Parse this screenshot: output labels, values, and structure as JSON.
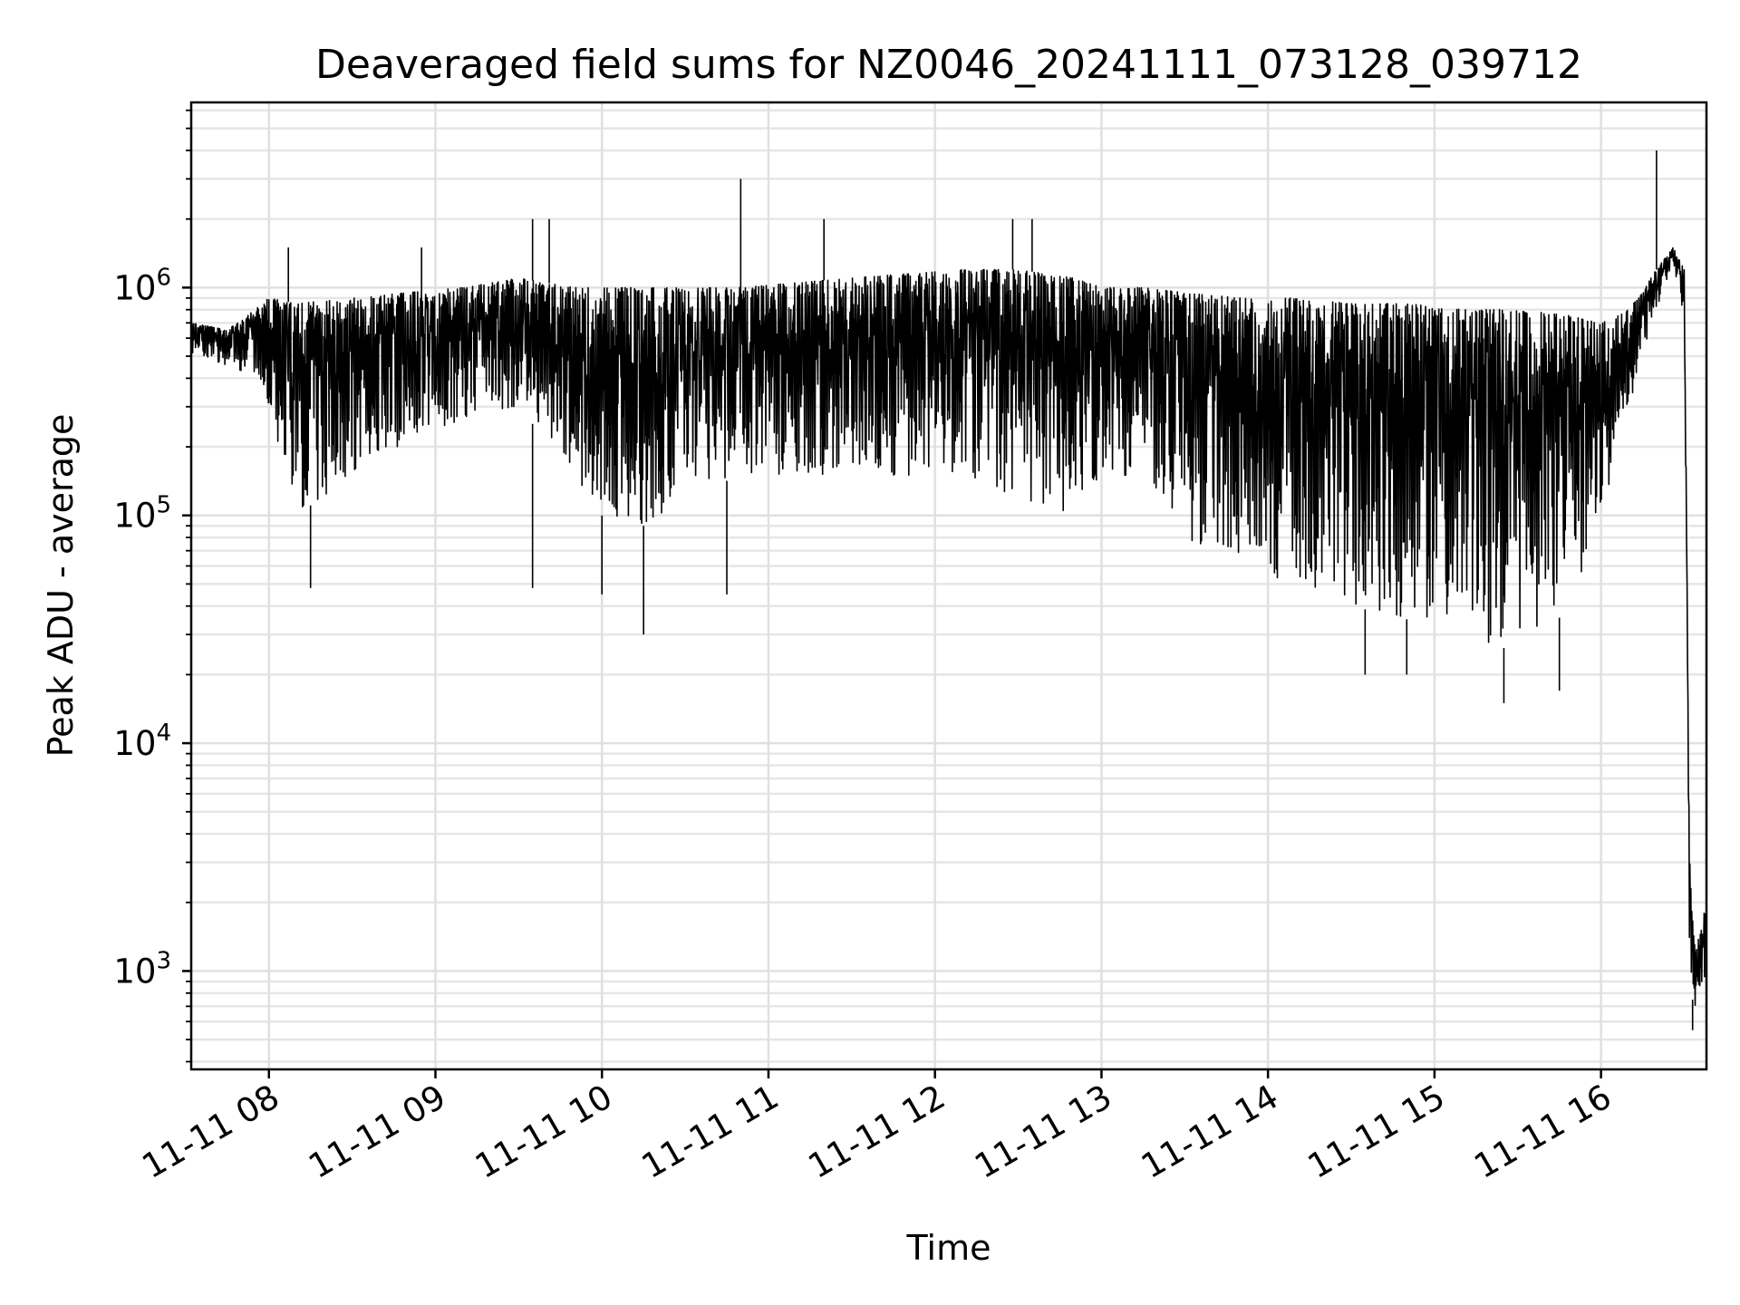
{
  "chart_data": {
    "type": "line",
    "title": "Deaveraged field sums for NZ0046_20241111_073128_039712",
    "xlabel": "Time",
    "ylabel": "Peak ADU - average",
    "y_scale": "log",
    "ylim": [
      370,
      6500000
    ],
    "xlim": [
      "2024-11-11T07:32:00",
      "2024-11-11T16:38:00"
    ],
    "x_tick_labels": [
      "11-11 08",
      "11-11 09",
      "11-11 10",
      "11-11 11",
      "11-11 12",
      "11-11 13",
      "11-11 14",
      "11-11 15",
      "11-11 16"
    ],
    "x_ticks": [
      "2024-11-11T08:00:00",
      "2024-11-11T09:00:00",
      "2024-11-11T10:00:00",
      "2024-11-11T11:00:00",
      "2024-11-11T12:00:00",
      "2024-11-11T13:00:00",
      "2024-11-11T14:00:00",
      "2024-11-11T15:00:00",
      "2024-11-11T16:00:00"
    ],
    "y_ticks": [
      1000,
      10000,
      100000,
      1000000
    ],
    "y_tick_labels": [
      {
        "base": "10",
        "exp": "3"
      },
      {
        "base": "10",
        "exp": "4"
      },
      {
        "base": "10",
        "exp": "5"
      },
      {
        "base": "10",
        "exp": "6"
      }
    ],
    "grid": true,
    "legend": "none",
    "line_color": "#000000",
    "series": [
      {
        "envelope": {
          "x": [
            "2024-11-11T07:32:00",
            "2024-11-11T07:45:00",
            "2024-11-11T07:55:00",
            "2024-11-11T08:00:00",
            "2024-11-11T08:10:00",
            "2024-11-11T08:30:00",
            "2024-11-11T08:50:00",
            "2024-11-11T09:10:00",
            "2024-11-11T09:30:00",
            "2024-11-11T09:50:00",
            "2024-11-11T10:00:00",
            "2024-11-11T10:15:00",
            "2024-11-11T10:30:00",
            "2024-11-11T10:50:00",
            "2024-11-11T11:10:00",
            "2024-11-11T11:30:00",
            "2024-11-11T11:50:00",
            "2024-11-11T12:10:00",
            "2024-11-11T12:30:00",
            "2024-11-11T12:50:00",
            "2024-11-11T13:00:00",
            "2024-11-11T13:15:00",
            "2024-11-11T13:30:00",
            "2024-11-11T13:50:00",
            "2024-11-11T14:10:00",
            "2024-11-11T14:30:00",
            "2024-11-11T14:50:00",
            "2024-11-11T15:10:00",
            "2024-11-11T15:30:00",
            "2024-11-11T15:50:00",
            "2024-11-11T16:00:00",
            "2024-11-11T16:10:00",
            "2024-11-11T16:20:00",
            "2024-11-11T16:26:00",
            "2024-11-11T16:30:00",
            "2024-11-11T16:32:00",
            "2024-11-11T16:34:00",
            "2024-11-11T16:38:00"
          ],
          "upper": [
            700000,
            650000,
            800000,
            900000,
            850000,
            900000,
            950000,
            1000000,
            1100000,
            1000000,
            1000000,
            1000000,
            1000000,
            1000000,
            1050000,
            1100000,
            1150000,
            1200000,
            1200000,
            1100000,
            1000000,
            1000000,
            950000,
            900000,
            900000,
            850000,
            850000,
            800000,
            800000,
            750000,
            700000,
            800000,
            1200000,
            1500000,
            1200000,
            3000,
            1200,
            2000
          ],
          "lower": [
            500000,
            450000,
            400000,
            300000,
            100000,
            150000,
            200000,
            250000,
            300000,
            150000,
            100000,
            90000,
            120000,
            150000,
            150000,
            150000,
            150000,
            150000,
            120000,
            100000,
            150000,
            150000,
            80000,
            60000,
            50000,
            40000,
            35000,
            30000,
            25000,
            40000,
            100000,
            300000,
            800000,
            1300000,
            700000,
            800,
            700,
            1000
          ]
        },
        "spikes_high": [
          {
            "x": "2024-11-11T08:07:00",
            "y": 1500000
          },
          {
            "x": "2024-11-11T08:55:00",
            "y": 1500000
          },
          {
            "x": "2024-11-11T09:35:00",
            "y": 2000000
          },
          {
            "x": "2024-11-11T09:41:00",
            "y": 2000000
          },
          {
            "x": "2024-11-11T10:50:00",
            "y": 3000000
          },
          {
            "x": "2024-11-11T11:20:00",
            "y": 2000000
          },
          {
            "x": "2024-11-11T12:28:00",
            "y": 2000000
          },
          {
            "x": "2024-11-11T12:35:00",
            "y": 2000000
          },
          {
            "x": "2024-11-11T16:20:00",
            "y": 4000000
          }
        ],
        "spikes_low": [
          {
            "x": "2024-11-11T08:15:00",
            "y": 48000
          },
          {
            "x": "2024-11-11T09:35:00",
            "y": 48000
          },
          {
            "x": "2024-11-11T10:00:00",
            "y": 45000
          },
          {
            "x": "2024-11-11T10:15:00",
            "y": 30000
          },
          {
            "x": "2024-11-11T10:45:00",
            "y": 45000
          },
          {
            "x": "2024-11-11T14:35:00",
            "y": 20000
          },
          {
            "x": "2024-11-11T14:50:00",
            "y": 20000
          },
          {
            "x": "2024-11-11T15:25:00",
            "y": 15000
          },
          {
            "x": "2024-11-11T15:45:00",
            "y": 17000
          },
          {
            "x": "2024-11-11T16:33:00",
            "y": 550
          }
        ]
      }
    ]
  }
}
